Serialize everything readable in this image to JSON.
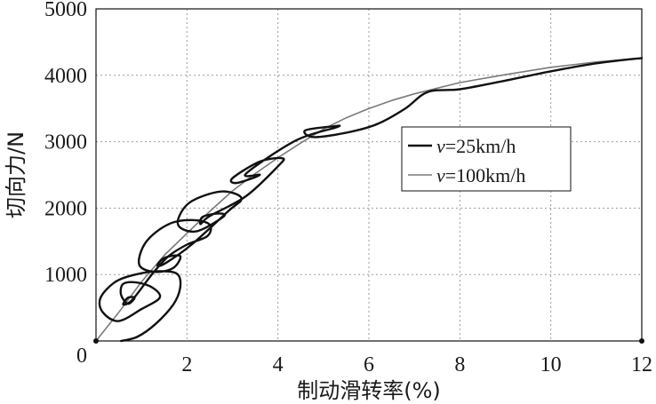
{
  "chart_data": {
    "type": "line",
    "title": "",
    "xlabel": "制动滑转率(%)",
    "ylabel": "切向力/N",
    "xlim": [
      0,
      12
    ],
    "ylim": [
      0,
      5000
    ],
    "xticks": [
      "0",
      "2",
      "4",
      "6",
      "8",
      "10",
      "12"
    ],
    "yticks": [
      "0",
      "1000",
      "2000",
      "3000",
      "4000",
      "5000"
    ],
    "grid": true,
    "legend_position": "right-center",
    "series": [
      {
        "name": "v=25km/h",
        "legend_var": "v",
        "legend_rest": "=25km/h",
        "color": "#111111",
        "x": [
          0.55,
          0.9,
          1.3,
          1.7,
          1.85,
          1.8,
          1.5,
          1.0,
          0.45,
          0.1,
          0.15,
          0.5,
          1.0,
          1.4,
          1.25,
          0.9,
          0.6,
          0.55,
          0.7,
          0.85,
          0.7,
          0.6,
          0.8,
          1.25,
          1.6,
          2.0,
          2.45,
          2.5,
          2.15,
          1.6,
          1.1,
          0.95,
          1.3,
          1.7,
          1.85,
          1.5,
          1.35,
          1.55,
          2.1,
          2.9,
          3.2,
          2.75,
          2.05,
          1.8,
          2.2,
          2.8,
          2.7,
          2.35,
          2.3,
          2.5,
          3.3,
          4.0,
          4.1,
          3.6,
          3.0,
          3.1,
          3.6,
          3.3,
          4.4,
          5.3,
          5.2,
          4.6,
          4.8,
          5.6,
          6.2,
          6.8,
          7.3,
          8.0,
          9.0,
          10.0,
          11.0,
          12.0
        ],
        "y": [
          0,
          60,
          250,
          550,
          800,
          1000,
          1050,
          1020,
          900,
          650,
          430,
          300,
          480,
          650,
          800,
          880,
          860,
          700,
          560,
          650,
          650,
          550,
          620,
          1020,
          1280,
          1450,
          1580,
          1750,
          1820,
          1760,
          1490,
          1150,
          1040,
          1100,
          1280,
          1250,
          1130,
          1180,
          1450,
          1950,
          2150,
          2250,
          2080,
          1760,
          1650,
          1870,
          1920,
          1870,
          1760,
          1880,
          2180,
          2630,
          2750,
          2700,
          2450,
          2380,
          2500,
          2520,
          3020,
          3220,
          3230,
          3170,
          3070,
          3150,
          3270,
          3500,
          3750,
          3790,
          3920,
          4060,
          4180,
          4260
        ]
      },
      {
        "name": "v=100km/h",
        "legend_var": "v",
        "legend_rest": "=100km/h",
        "color": "#7a7a7a",
        "x": [
          0,
          0.5,
          1.0,
          1.5,
          2.0,
          2.5,
          3.0,
          3.5,
          4.0,
          4.5,
          5.0,
          5.5,
          6.0,
          6.5,
          7.0,
          8.0,
          9.0,
          10.0,
          11.0,
          12.0
        ],
        "y": [
          0,
          430,
          890,
          1290,
          1620,
          1950,
          2260,
          2520,
          2760,
          2980,
          3190,
          3360,
          3500,
          3620,
          3720,
          3890,
          4010,
          4120,
          4200,
          4260
        ]
      }
    ]
  }
}
